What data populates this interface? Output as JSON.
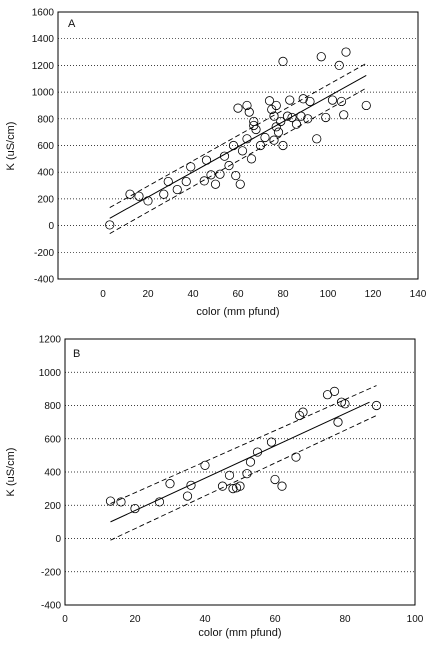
{
  "chart_data": [
    {
      "type": "scatter",
      "panel_label": "A",
      "xlabel": "color (mm pfund)",
      "ylabel": "K (uS/cm)",
      "xlim": [
        -20,
        140
      ],
      "ylim": [
        -400,
        1600
      ],
      "xticks": [
        0,
        20,
        40,
        60,
        80,
        100,
        120,
        140
      ],
      "yticks": [
        -400,
        -200,
        0,
        200,
        400,
        600,
        800,
        1000,
        1200,
        1400,
        1600
      ],
      "grid": "horizontal dotted",
      "points": [
        [
          3,
          5
        ],
        [
          12,
          235
        ],
        [
          16,
          220
        ],
        [
          20,
          185
        ],
        [
          27,
          235
        ],
        [
          29,
          330
        ],
        [
          33,
          270
        ],
        [
          37,
          330
        ],
        [
          39,
          440
        ],
        [
          45,
          335
        ],
        [
          46,
          490
        ],
        [
          48,
          380
        ],
        [
          50,
          310
        ],
        [
          52,
          385
        ],
        [
          54,
          520
        ],
        [
          56,
          450
        ],
        [
          58,
          600
        ],
        [
          59,
          375
        ],
        [
          60,
          880
        ],
        [
          61,
          310
        ],
        [
          62,
          560
        ],
        [
          64,
          650
        ],
        [
          64,
          900
        ],
        [
          65,
          850
        ],
        [
          66,
          500
        ],
        [
          67,
          750
        ],
        [
          67,
          780
        ],
        [
          68,
          720
        ],
        [
          70,
          600
        ],
        [
          72,
          660
        ],
        [
          74,
          935
        ],
        [
          75,
          870
        ],
        [
          76,
          640
        ],
        [
          76,
          820
        ],
        [
          77,
          900
        ],
        [
          77,
          740
        ],
        [
          78,
          700
        ],
        [
          79,
          780
        ],
        [
          80,
          600
        ],
        [
          80,
          1230
        ],
        [
          82,
          820
        ],
        [
          83,
          940
        ],
        [
          84,
          810
        ],
        [
          86,
          760
        ],
        [
          88,
          820
        ],
        [
          89,
          950
        ],
        [
          91,
          800
        ],
        [
          92,
          930
        ],
        [
          95,
          650
        ],
        [
          97,
          1265
        ],
        [
          99,
          810
        ],
        [
          102,
          940
        ],
        [
          105,
          1200
        ],
        [
          106,
          930
        ],
        [
          107,
          830
        ],
        [
          108,
          1300
        ],
        [
          117,
          900
        ]
      ],
      "fit_line": {
        "x": [
          3,
          117
        ],
        "y": [
          55,
          1125
        ]
      },
      "confidence_bands": [
        {
          "x": [
            3,
            117
          ],
          "y": [
            135,
            1215
          ]
        },
        {
          "x": [
            3,
            117
          ],
          "y": [
            -60,
            1030
          ]
        }
      ]
    },
    {
      "type": "scatter",
      "panel_label": "B",
      "xlabel": "color (mm pfund)",
      "ylabel": "K (uS/cm)",
      "xlim": [
        0,
        100
      ],
      "ylim": [
        -400,
        1200
      ],
      "xticks": [
        0,
        20,
        40,
        60,
        80,
        100
      ],
      "yticks": [
        -400,
        -200,
        0,
        200,
        400,
        600,
        800,
        1000,
        1200
      ],
      "grid": "horizontal dotted",
      "points": [
        [
          13,
          225
        ],
        [
          16,
          220
        ],
        [
          20,
          180
        ],
        [
          27,
          220
        ],
        [
          30,
          330
        ],
        [
          35,
          255
        ],
        [
          36,
          320
        ],
        [
          40,
          440
        ],
        [
          45,
          315
        ],
        [
          47,
          380
        ],
        [
          48,
          300
        ],
        [
          49,
          305
        ],
        [
          50,
          315
        ],
        [
          52,
          390
        ],
        [
          53,
          460
        ],
        [
          55,
          520
        ],
        [
          59,
          580
        ],
        [
          60,
          355
        ],
        [
          62,
          315
        ],
        [
          66,
          490
        ],
        [
          67,
          740
        ],
        [
          68,
          760
        ],
        [
          75,
          865
        ],
        [
          77,
          885
        ],
        [
          78,
          700
        ],
        [
          79,
          820
        ],
        [
          80,
          810
        ],
        [
          89,
          800
        ]
      ],
      "fit_line": {
        "x": [
          13,
          87
        ],
        "y": [
          100,
          820
        ]
      },
      "confidence_bands": [
        {
          "x": [
            13,
            89
          ],
          "y": [
            210,
            920
          ]
        },
        {
          "x": [
            13,
            89
          ],
          "y": [
            -10,
            740
          ]
        }
      ]
    }
  ]
}
